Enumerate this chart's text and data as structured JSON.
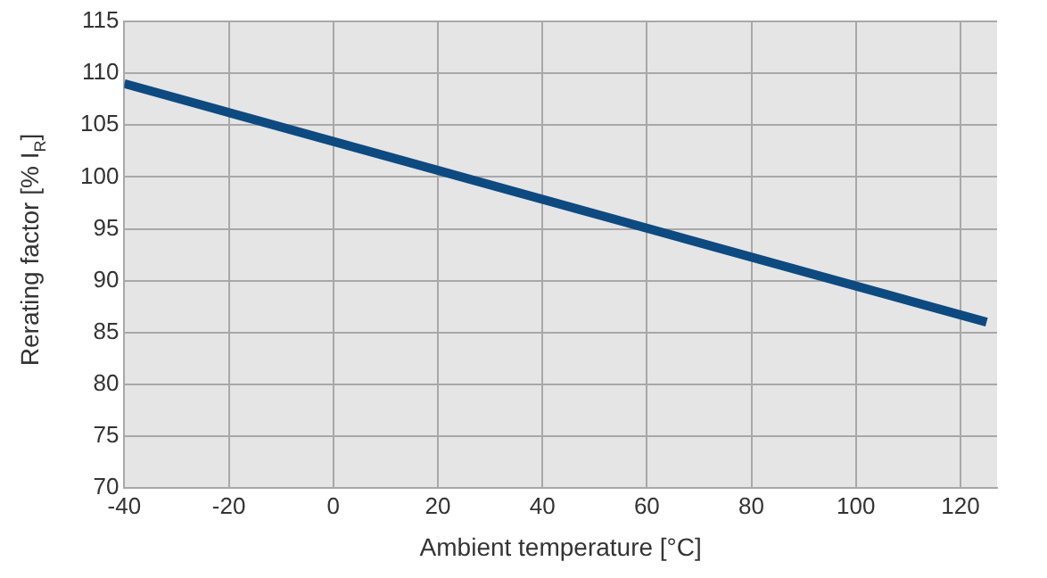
{
  "chart_data": {
    "type": "line",
    "xlabel": "Ambient temperature [°C]",
    "ylabel": "Rerating factor [% I$_{R}$]",
    "x": [
      -40,
      125
    ],
    "series": [
      {
        "color": "#0d4a80",
        "values": [
          109,
          86
        ]
      }
    ],
    "xlim": [
      -40,
      127
    ],
    "xticks": [
      -40,
      -20,
      0,
      20,
      40,
      60,
      80,
      100,
      120
    ],
    "ylim": [
      70,
      115
    ],
    "yticks": [
      70,
      75,
      80,
      85,
      90,
      95,
      100,
      105,
      110,
      115
    ],
    "grid": true,
    "legend": false,
    "marker": "none",
    "line_style": "solid"
  }
}
